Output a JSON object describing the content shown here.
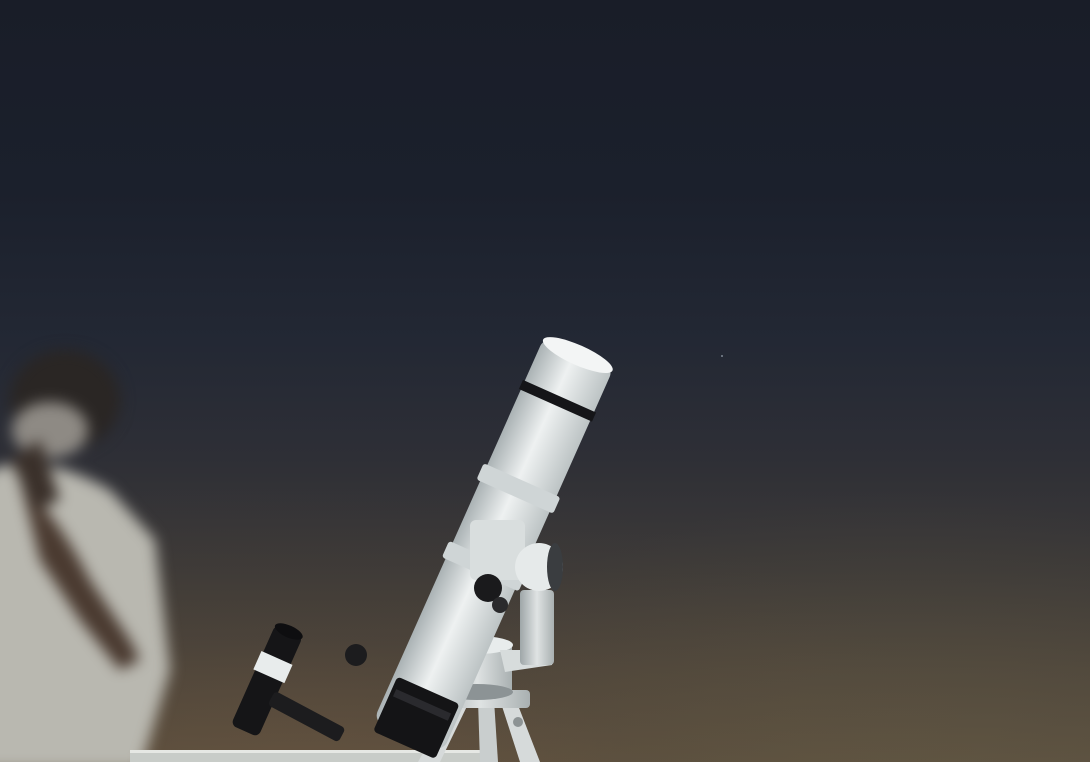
{
  "scene": {
    "subject": "telescope-on-mount",
    "background": "night-sky",
    "colors": {
      "sky_top": "#191d28",
      "sky_horizon": "#5a4f40",
      "telescope_body": "#e8ecec",
      "telescope_shadow": "#b8c0c2",
      "mount_dark": "#1c1c1e",
      "person_clothes": "#c9c8c0"
    }
  }
}
